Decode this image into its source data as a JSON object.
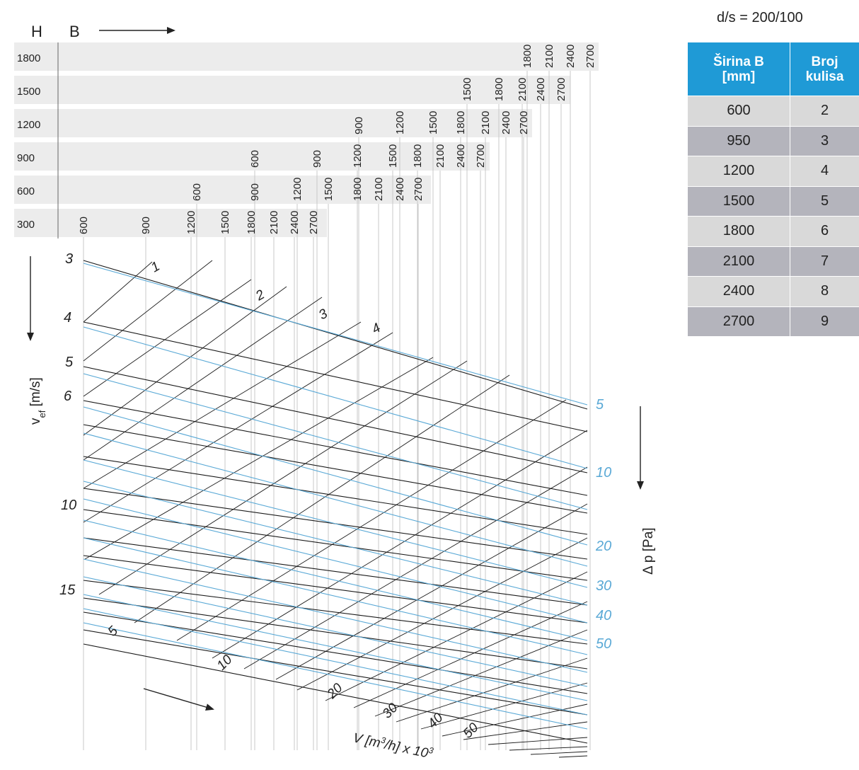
{
  "chart_data": [
    {
      "type": "nomogram",
      "labels": {
        "h": "H",
        "b": "B",
        "v_ef": "v",
        "v_ef_sub": "ef",
        "v_ef_unit": " [m/s]",
        "dp": "Δ p [Pa]",
        "flow_main": "V [m",
        "flow_sup1": "3",
        "flow_mid": "/h] x 10",
        "flow_sup2": "3"
      },
      "widths_by_height": [
        {
          "h": "1800",
          "widths": [
            "1800",
            "2100",
            "2400",
            "2700"
          ]
        },
        {
          "h": "1500",
          "widths": [
            "1500",
            "1800",
            "2100",
            "2400",
            "2700"
          ]
        },
        {
          "h": "1200",
          "widths": [
            "900",
            "1200",
            "1500",
            "1800",
            "2100",
            "2400",
            "2700"
          ]
        },
        {
          "h": "900",
          "widths": [
            "600",
            "900",
            "1200",
            "1500",
            "1800",
            "2100",
            "2400",
            "2700"
          ]
        },
        {
          "h": "600",
          "widths": [
            "600",
            "900",
            "1200",
            "1500",
            "1800",
            "2100",
            "2400",
            "2700"
          ]
        },
        {
          "h": "300",
          "widths": [
            "600",
            "900",
            "1200",
            "1500",
            "1800",
            "2100",
            "2400",
            "2700"
          ]
        }
      ],
      "velocity_axis": {
        "label": "v_ef [m/s]",
        "ticks": [
          "3",
          "4",
          "5",
          "6",
          "10",
          "15"
        ]
      },
      "curve_labels": [
        "1",
        "2",
        "3",
        "4"
      ],
      "pressure_drop_axis": {
        "label": "Δ p [Pa]",
        "ticks": [
          "5",
          "10",
          "20",
          "30",
          "40",
          "50"
        ],
        "color": "#5aa9d6"
      },
      "flow_axis": {
        "label": "V [m3/h] x 10^3",
        "ticks": [
          "5",
          "10",
          "20",
          "30",
          "40",
          "50"
        ]
      }
    },
    {
      "type": "table",
      "title": "d/s = 200/100",
      "headers": [
        "Širina B [mm]",
        "Broj kulisa"
      ],
      "rows": [
        [
          "600",
          "2"
        ],
        [
          "950",
          "3"
        ],
        [
          "1200",
          "4"
        ],
        [
          "1500",
          "5"
        ],
        [
          "1800",
          "6"
        ],
        [
          "2100",
          "7"
        ],
        [
          "2400",
          "8"
        ],
        [
          "2700",
          "9"
        ]
      ]
    }
  ],
  "table": {
    "ratio": "d/s = 200/100",
    "header_width_line1": "Širina B",
    "header_width_line2": "[mm]",
    "header_count_line1": "Broj",
    "header_count_line2": "kulisa",
    "rows": [
      {
        "width": "600",
        "count": "2"
      },
      {
        "width": "950",
        "count": "3"
      },
      {
        "width": "1200",
        "count": "4"
      },
      {
        "width": "1500",
        "count": "5"
      },
      {
        "width": "1800",
        "count": "6"
      },
      {
        "width": "2100",
        "count": "7"
      },
      {
        "width": "2400",
        "count": "8"
      },
      {
        "width": "2700",
        "count": "9"
      }
    ]
  },
  "colors": {
    "blue_line": "#5aa9d6",
    "black_line": "#1a1a1a",
    "grid": "#c8c8c8",
    "band": "#ececec",
    "header_bg": "#1f9ad6"
  }
}
